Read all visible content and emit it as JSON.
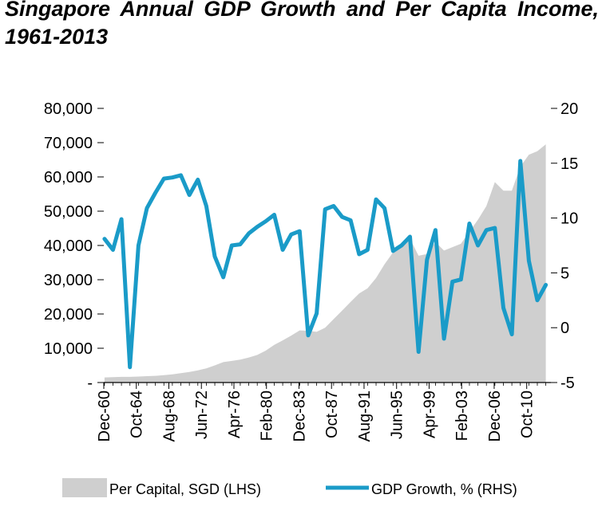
{
  "chart_data": {
    "type": "area+line",
    "title": "Singapore Annual GDP Growth and Per Capita Income, 1961-2013",
    "x_tick_labels": [
      "Dec-60",
      "Oct-64",
      "Aug-68",
      "Jun-72",
      "Apr-76",
      "Feb-80",
      "Dec-83",
      "Oct-87",
      "Aug-91",
      "Jun-95",
      "Apr-99",
      "Feb-03",
      "Dec-06",
      "Oct-10"
    ],
    "y_left": {
      "ticks": [
        "80,000",
        "70,000",
        "60,000",
        "50,000",
        "40,000",
        "30,000",
        "20,000",
        "10,000",
        "-"
      ],
      "ylim": [
        0,
        80000
      ]
    },
    "y_right": {
      "ticks": [
        "20",
        "15",
        "10",
        "5",
        "0",
        "-5"
      ],
      "ylim": [
        -5,
        20
      ]
    },
    "series": [
      {
        "name": "Per Capital, SGD (LHS)",
        "kind": "area",
        "axis": "left",
        "color": "#cfcfcf",
        "x": [
          1961,
          1962,
          1963,
          1964,
          1965,
          1966,
          1967,
          1968,
          1969,
          1970,
          1971,
          1972,
          1973,
          1974,
          1975,
          1976,
          1977,
          1978,
          1979,
          1980,
          1981,
          1982,
          1983,
          1984,
          1985,
          1986,
          1987,
          1988,
          1989,
          1990,
          1991,
          1992,
          1993,
          1994,
          1995,
          1996,
          1997,
          1998,
          1999,
          2000,
          2001,
          2002,
          2003,
          2004,
          2005,
          2006,
          2007,
          2008,
          2009,
          2010,
          2011,
          2012,
          2013
        ],
        "values": [
          1500,
          1550,
          1650,
          1650,
          1750,
          1850,
          1950,
          2150,
          2400,
          2750,
          3100,
          3550,
          4150,
          5000,
          5950,
          6300,
          6700,
          7300,
          8050,
          9300,
          11000,
          12300,
          13700,
          15200,
          15100,
          14800,
          16000,
          18500,
          21000,
          23500,
          26000,
          27500,
          30500,
          34500,
          38000,
          40500,
          42000,
          37000,
          37500,
          41000,
          38500,
          39500,
          40500,
          44000,
          47500,
          51500,
          58500,
          56000,
          56000,
          63000,
          66500,
          67500,
          69500
        ]
      },
      {
        "name": "GDP Growth, % (RHS)",
        "kind": "line",
        "axis": "right",
        "color": "#1a9bc8",
        "x": [
          1961,
          1962,
          1963,
          1964,
          1965,
          1966,
          1967,
          1968,
          1969,
          1970,
          1971,
          1972,
          1973,
          1974,
          1975,
          1976,
          1977,
          1978,
          1979,
          1980,
          1981,
          1982,
          1983,
          1984,
          1985,
          1986,
          1987,
          1988,
          1989,
          1990,
          1991,
          1992,
          1993,
          1994,
          1995,
          1996,
          1997,
          1998,
          1999,
          2000,
          2001,
          2002,
          2003,
          2004,
          2005,
          2006,
          2007,
          2008,
          2009,
          2010,
          2011,
          2012,
          2013
        ],
        "values": [
          8.1,
          7.1,
          9.9,
          -3.6,
          7.5,
          10.9,
          12.3,
          13.6,
          13.7,
          13.9,
          12.1,
          13.5,
          11.1,
          6.5,
          4.6,
          7.5,
          7.6,
          8.6,
          9.2,
          9.7,
          10.3,
          7.1,
          8.5,
          8.8,
          -0.7,
          1.3,
          10.8,
          11.1,
          10.1,
          9.8,
          6.7,
          7.1,
          11.7,
          10.9,
          7.0,
          7.5,
          8.3,
          -2.2,
          6.2,
          8.9,
          -1.0,
          4.2,
          4.4,
          9.5,
          7.5,
          8.9,
          9.1,
          1.8,
          -0.6,
          15.2,
          6.1,
          2.5,
          3.9
        ]
      }
    ],
    "legend": {
      "placement": "bottom",
      "area_label": "Per Capital, SGD (LHS)",
      "line_label": "GDP Growth, % (RHS)"
    }
  }
}
